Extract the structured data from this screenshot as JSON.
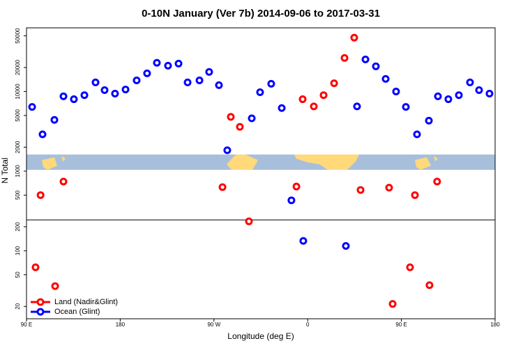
{
  "chart_data": {
    "type": "scatter",
    "title": "0-10N January (Ver 7b)   2014-09-06 to 2017-03-31",
    "x_label": "Longitude (deg E)",
    "y_label": "N Total",
    "xlim": [
      90,
      540
    ],
    "xticks": [
      {
        "value": 90,
        "label": "90 E"
      },
      {
        "value": 180,
        "label": "180"
      },
      {
        "value": 270,
        "label": "90 W"
      },
      {
        "value": 360,
        "label": "0"
      },
      {
        "value": 450,
        "label": "90 E"
      },
      {
        "value": 540,
        "label": "180"
      }
    ],
    "ylim": [
      14,
      63000
    ],
    "log_y": true,
    "yticks": [
      20,
      50,
      100,
      200,
      500,
      1000,
      2000,
      5000,
      10000,
      20000,
      50000
    ],
    "legend": "bottom-left",
    "series": [
      {
        "name": "Land (Nadir&Glint)",
        "color": "#ff0000",
        "x": [
          98.7,
          103.5,
          117.5,
          125.5,
          278.2,
          286.2,
          294.9,
          303.6,
          349.2,
          355.2,
          365.9,
          375.3,
          385.4,
          395.4,
          404.7,
          410.8,
          438.2,
          441.6,
          458.3,
          463.0,
          477.0,
          484.3
        ],
        "values": [
          62,
          500,
          36,
          740,
          630,
          4800,
          3600,
          234,
          640,
          8000,
          6500,
          9000,
          12700,
          26400,
          47400,
          580,
          620,
          21.5,
          62,
          500,
          37,
          740
        ]
      },
      {
        "name": "Ocean (Glint)",
        "color": "#0000ff",
        "x": [
          95.4,
          105.4,
          116.8,
          125.5,
          135.5,
          145.6,
          156.3,
          165.0,
          175.0,
          185.1,
          195.8,
          205.8,
          215.2,
          225.9,
          236.0,
          244.7,
          256.1,
          265.4,
          274.8,
          282.8,
          306.3,
          314.3,
          325.0,
          335.1,
          344.4,
          355.8,
          396.7,
          407.4,
          415.5,
          425.5,
          434.9,
          444.9,
          454.3,
          465.0,
          476.4,
          485.1,
          495.1,
          505.2,
          515.9,
          524.6,
          534.6
        ],
        "values": [
          6400,
          2900,
          4400,
          8700,
          8000,
          9000,
          13000,
          10400,
          9400,
          10600,
          13800,
          16900,
          22900,
          21100,
          22400,
          13000,
          13800,
          17600,
          12000,
          1830,
          4600,
          9800,
          12500,
          6200,
          430,
          133,
          115,
          6500,
          25300,
          20700,
          14400,
          10000,
          6400,
          2900,
          4300,
          8700,
          8000,
          9000,
          13000,
          10400,
          9400
        ]
      }
    ]
  }
}
